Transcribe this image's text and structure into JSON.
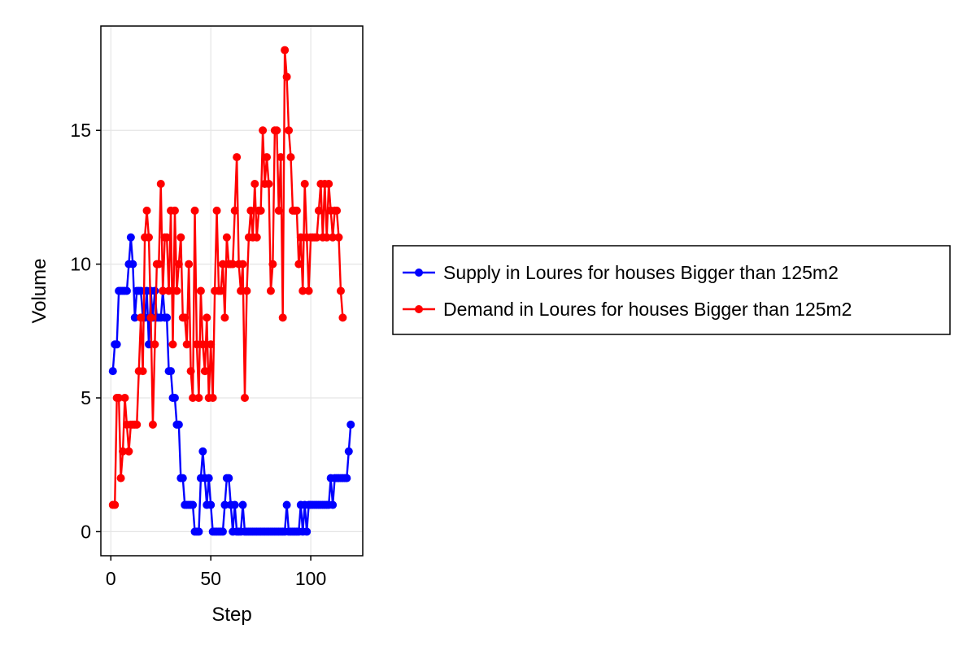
{
  "chart_data": {
    "type": "line",
    "title": "",
    "xlabel": "Step",
    "ylabel": "Volume",
    "xlim": [
      -5,
      126
    ],
    "ylim": [
      -0.9,
      18.9
    ],
    "xticks": [
      0,
      50,
      100
    ],
    "yticks": [
      0,
      5,
      10,
      15
    ],
    "grid": true,
    "legend_position": "right",
    "colors": {
      "supply": "#0000ff",
      "demand": "#ff0000",
      "grid": "#e5e5e5",
      "frame": "#000000"
    },
    "x": [
      1,
      2,
      3,
      4,
      5,
      6,
      7,
      8,
      9,
      10,
      11,
      12,
      13,
      14,
      15,
      16,
      17,
      18,
      19,
      20,
      21,
      22,
      23,
      24,
      25,
      26,
      27,
      28,
      29,
      30,
      31,
      32,
      33,
      34,
      35,
      36,
      37,
      38,
      39,
      40,
      41,
      42,
      43,
      44,
      45,
      46,
      47,
      48,
      49,
      50,
      51,
      52,
      53,
      54,
      55,
      56,
      57,
      58,
      59,
      60,
      61,
      62,
      63,
      64,
      65,
      66,
      67,
      68,
      69,
      70,
      71,
      72,
      73,
      74,
      75,
      76,
      77,
      78,
      79,
      80,
      81,
      82,
      83,
      84,
      85,
      86,
      87,
      88,
      89,
      90,
      91,
      92,
      93,
      94,
      95,
      96,
      97,
      98,
      99,
      100,
      101,
      102,
      103,
      104,
      105,
      106,
      107,
      108,
      109,
      110,
      111,
      112,
      113,
      114,
      115,
      116,
      117,
      118,
      119,
      120
    ],
    "series": [
      {
        "name": "Supply in Loures for houses Bigger than 125m2",
        "color": "#0000ff",
        "values": [
          6,
          7,
          7,
          9,
          9,
          9,
          9,
          9,
          10,
          11,
          10,
          8,
          9,
          9,
          9,
          8,
          8,
          9,
          7,
          9,
          8,
          9,
          8,
          8,
          8,
          9,
          8,
          8,
          6,
          6,
          5,
          5,
          4,
          4,
          2,
          2,
          1,
          1,
          1,
          1,
          1,
          0,
          0,
          0,
          2,
          3,
          2,
          1,
          2,
          1,
          0,
          0,
          0,
          0,
          0,
          0,
          1,
          2,
          2,
          1,
          0,
          1,
          0,
          0,
          0,
          1,
          0,
          0,
          0,
          0,
          0,
          0,
          0,
          0,
          0,
          0,
          0,
          0,
          0,
          0,
          0,
          0,
          0,
          0,
          0,
          0,
          0,
          1,
          0,
          0,
          0,
          0,
          0,
          0,
          1,
          0,
          1,
          0,
          1,
          1,
          1,
          1,
          1,
          1,
          1,
          1,
          1,
          1,
          1,
          2,
          1,
          2,
          2,
          2,
          2,
          2,
          2,
          2,
          3,
          4
        ]
      },
      {
        "name": "Demand in Loures for houses Bigger than 125m2",
        "color": "#ff0000",
        "values": [
          1,
          1,
          5,
          5,
          2,
          3,
          5,
          4,
          3,
          4,
          4,
          4,
          4,
          6,
          8,
          6,
          11,
          12,
          11,
          8,
          4,
          7,
          10,
          10,
          13,
          9,
          11,
          11,
          9,
          12,
          7,
          12,
          9,
          10,
          11,
          8,
          8,
          7,
          10,
          6,
          5,
          12,
          7,
          5,
          9,
          7,
          6,
          8,
          5,
          7,
          5,
          9,
          12,
          9,
          9,
          10,
          8,
          11,
          10,
          10,
          10,
          12,
          14,
          10,
          9,
          10,
          5,
          9,
          11,
          12,
          11,
          13,
          11,
          12,
          12,
          15,
          13,
          14,
          13,
          9,
          10,
          15,
          15,
          12,
          14,
          8,
          18,
          17,
          15,
          14,
          12,
          12,
          12,
          10,
          11,
          9,
          13,
          11,
          9,
          11,
          11,
          11,
          11,
          12,
          13,
          11,
          13,
          11,
          13,
          12,
          11,
          12,
          12,
          11,
          9,
          8,
          null,
          null,
          null,
          null
        ]
      }
    ]
  }
}
